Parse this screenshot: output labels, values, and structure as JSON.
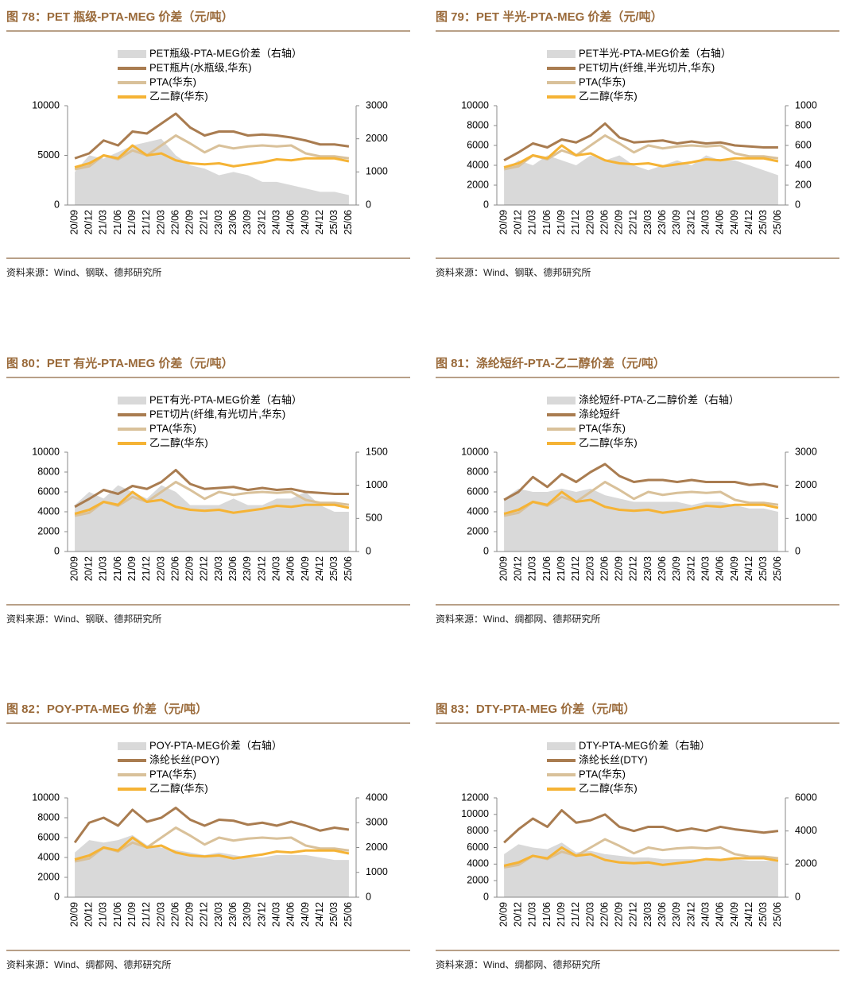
{
  "chart_data": [
    {
      "type": "line",
      "title": "图 78：PET 瓶级-PTA-MEG 价差（元/吨）",
      "note": "资料来源：Wind、钢联、德邦研究所",
      "categories": [
        "20/09",
        "20/12",
        "21/03",
        "21/06",
        "21/09",
        "21/12",
        "22/03",
        "22/06",
        "22/09",
        "22/12",
        "23/03",
        "23/06",
        "23/09",
        "23/12",
        "24/03",
        "24/06",
        "24/09",
        "24/12",
        "25/03",
        "25/06"
      ],
      "ylim": [
        0,
        10000
      ],
      "yticks": [
        0,
        5000,
        10000
      ],
      "y2lim": [
        0,
        3000
      ],
      "y2ticks": [
        0,
        1000,
        2000,
        3000
      ],
      "series": [
        {
          "name": "PET瓶级-PTA-MEG价差（右轴）",
          "type": "area",
          "axis": "y2",
          "color": "#d9d9d9",
          "values": [
            1000,
            1500,
            1400,
            1600,
            1800,
            1900,
            2000,
            1500,
            1200,
            1100,
            900,
            1000,
            900,
            700,
            700,
            600,
            500,
            400,
            400,
            300
          ]
        },
        {
          "name": "PET瓶片(水瓶级,华东)",
          "type": "line",
          "color": "#a97c50",
          "values": [
            4700,
            5200,
            6500,
            6000,
            7400,
            7200,
            8200,
            9200,
            7800,
            7000,
            7400,
            7400,
            7000,
            7100,
            7000,
            6800,
            6500,
            6100,
            6100,
            5900
          ]
        },
        {
          "name": "PTA(华东)",
          "type": "line",
          "color": "#d9c19a",
          "values": [
            3600,
            3900,
            5000,
            4600,
            5500,
            5000,
            6000,
            7000,
            6200,
            5300,
            6000,
            5700,
            5900,
            6000,
            5900,
            6000,
            5200,
            4900,
            4900,
            4700
          ]
        },
        {
          "name": "乙二醇(华东)",
          "type": "line",
          "color": "#f5b335",
          "values": [
            3800,
            4200,
            5000,
            4700,
            6000,
            5000,
            5200,
            4500,
            4200,
            4100,
            4200,
            3900,
            4100,
            4300,
            4600,
            4500,
            4700,
            4700,
            4700,
            4400
          ]
        }
      ]
    },
    {
      "type": "line",
      "title": "图 79：PET 半光-PTA-MEG 价差（元/吨）",
      "note": "资料来源：Wind、钢联、德邦研究所",
      "categories": [
        "20/09",
        "20/12",
        "21/03",
        "21/06",
        "21/09",
        "21/12",
        "22/03",
        "22/06",
        "22/09",
        "22/12",
        "23/03",
        "23/06",
        "23/09",
        "23/12",
        "24/03",
        "24/06",
        "24/09",
        "24/12",
        "25/03",
        "25/06"
      ],
      "ylim": [
        0,
        10000
      ],
      "yticks": [
        0,
        2000,
        4000,
        6000,
        8000,
        10000
      ],
      "y2lim": [
        0,
        1000
      ],
      "y2ticks": [
        0,
        200,
        400,
        600,
        800,
        1000
      ],
      "series": [
        {
          "name": "PET半光-PTA-MEG价差（右轴）",
          "type": "area",
          "axis": "y2",
          "color": "#d9d9d9",
          "values": [
            350,
            450,
            400,
            500,
            450,
            400,
            500,
            450,
            500,
            400,
            350,
            400,
            450,
            400,
            500,
            450,
            450,
            400,
            350,
            300
          ]
        },
        {
          "name": "PET切片(纤维,半光切片,华东)",
          "type": "line",
          "color": "#a97c50",
          "values": [
            4500,
            5300,
            6200,
            5800,
            6600,
            6300,
            7000,
            8200,
            6800,
            6300,
            6400,
            6500,
            6200,
            6400,
            6200,
            6300,
            6000,
            5900,
            5800,
            5800
          ]
        },
        {
          "name": "PTA(华东)",
          "type": "line",
          "color": "#d9c19a",
          "values": [
            3600,
            3900,
            5000,
            4600,
            5500,
            5000,
            6000,
            7000,
            6200,
            5300,
            6000,
            5700,
            5900,
            6000,
            5900,
            6000,
            5200,
            4900,
            4900,
            4700
          ]
        },
        {
          "name": "乙二醇(华东)",
          "type": "line",
          "color": "#f5b335",
          "values": [
            3800,
            4200,
            5000,
            4700,
            6000,
            5000,
            5200,
            4500,
            4200,
            4100,
            4200,
            3900,
            4100,
            4300,
            4600,
            4500,
            4700,
            4700,
            4700,
            4400
          ]
        }
      ]
    },
    {
      "type": "line",
      "title": "图 80：PET 有光-PTA-MEG 价差（元/吨）",
      "note": "资料来源：Wind、钢联、德邦研究所",
      "categories": [
        "20/09",
        "20/12",
        "21/03",
        "21/06",
        "21/09",
        "21/12",
        "22/03",
        "22/06",
        "22/09",
        "22/12",
        "23/03",
        "23/06",
        "23/09",
        "23/12",
        "24/03",
        "24/06",
        "24/09",
        "24/12",
        "25/03",
        "25/06"
      ],
      "ylim": [
        0,
        10000
      ],
      "yticks": [
        0,
        2000,
        4000,
        6000,
        8000,
        10000
      ],
      "y2lim": [
        0,
        1500
      ],
      "y2ticks": [
        0,
        500,
        1000,
        1500
      ],
      "series": [
        {
          "name": "PET有光-PTA-MEG价差（右轴）",
          "type": "area",
          "axis": "y2",
          "color": "#d9d9d9",
          "values": [
            700,
            900,
            800,
            1000,
            900,
            800,
            1000,
            900,
            700,
            700,
            700,
            800,
            700,
            700,
            800,
            800,
            900,
            700,
            600,
            600
          ]
        },
        {
          "name": "PET切片(纤维,有光切片,华东)",
          "type": "line",
          "color": "#a97c50",
          "values": [
            4500,
            5300,
            6200,
            5800,
            6600,
            6300,
            7000,
            8200,
            6800,
            6300,
            6400,
            6500,
            6200,
            6400,
            6200,
            6300,
            6000,
            5900,
            5800,
            5800
          ]
        },
        {
          "name": "PTA(华东)",
          "type": "line",
          "color": "#d9c19a",
          "values": [
            3600,
            3900,
            5000,
            4600,
            5500,
            5000,
            6000,
            7000,
            6200,
            5300,
            6000,
            5700,
            5900,
            6000,
            5900,
            6000,
            5200,
            4900,
            4900,
            4700
          ]
        },
        {
          "name": "乙二醇(华东)",
          "type": "line",
          "color": "#f5b335",
          "values": [
            3800,
            4200,
            5000,
            4700,
            6000,
            5000,
            5200,
            4500,
            4200,
            4100,
            4200,
            3900,
            4100,
            4300,
            4600,
            4500,
            4700,
            4700,
            4700,
            4400
          ]
        }
      ]
    },
    {
      "type": "line",
      "title": "图 81：涤纶短纤-PTA-乙二醇价差（元/吨）",
      "note": "资料来源：Wind、绸都网、德邦研究所",
      "categories": [
        "20/09",
        "20/12",
        "21/03",
        "21/06",
        "21/09",
        "21/12",
        "22/03",
        "22/06",
        "22/09",
        "22/12",
        "23/03",
        "23/06",
        "23/09",
        "23/12",
        "24/03",
        "24/06",
        "24/09",
        "24/12",
        "25/03",
        "25/06"
      ],
      "ylim": [
        0,
        10000
      ],
      "yticks": [
        0,
        2000,
        4000,
        6000,
        8000,
        10000
      ],
      "y2lim": [
        0,
        3000
      ],
      "y2ticks": [
        0,
        1000,
        2000,
        3000
      ],
      "series": [
        {
          "name": "涤纶短纤-PTA-乙二醇价差（右轴）",
          "type": "area",
          "axis": "y2",
          "color": "#d9d9d9",
          "values": [
            1600,
            1900,
            1800,
            1800,
            1900,
            1800,
            1900,
            1700,
            1600,
            1500,
            1500,
            1500,
            1500,
            1400,
            1500,
            1500,
            1400,
            1300,
            1300,
            1200
          ]
        },
        {
          "name": "涤纶短纤",
          "type": "line",
          "color": "#a97c50",
          "values": [
            5200,
            6000,
            7500,
            6500,
            7800,
            7000,
            8000,
            8800,
            7600,
            7000,
            7200,
            7200,
            7000,
            7200,
            7000,
            7000,
            7000,
            6700,
            6800,
            6500
          ]
        },
        {
          "name": "PTA(华东)",
          "type": "line",
          "color": "#d9c19a",
          "values": [
            3600,
            3900,
            5000,
            4600,
            5500,
            5000,
            6000,
            7000,
            6200,
            5300,
            6000,
            5700,
            5900,
            6000,
            5900,
            6000,
            5200,
            4900,
            4900,
            4700
          ]
        },
        {
          "name": "乙二醇(华东)",
          "type": "line",
          "color": "#f5b335",
          "values": [
            3800,
            4200,
            5000,
            4700,
            6000,
            5000,
            5200,
            4500,
            4200,
            4100,
            4200,
            3900,
            4100,
            4300,
            4600,
            4500,
            4700,
            4700,
            4700,
            4400
          ]
        }
      ]
    },
    {
      "type": "line",
      "title": "图 82：POY-PTA-MEG 价差（元/吨）",
      "note": "资料来源：Wind、绸都网、德邦研究所",
      "categories": [
        "20/09",
        "20/12",
        "21/03",
        "21/06",
        "21/09",
        "21/12",
        "22/03",
        "22/06",
        "22/09",
        "22/12",
        "23/03",
        "23/06",
        "23/09",
        "23/12",
        "24/03",
        "24/06",
        "24/09",
        "24/12",
        "25/03",
        "25/06"
      ],
      "ylim": [
        0,
        10000
      ],
      "yticks": [
        0,
        2000,
        4000,
        6000,
        8000,
        10000
      ],
      "y2lim": [
        0,
        4000
      ],
      "y2ticks": [
        0,
        1000,
        2000,
        3000,
        4000
      ],
      "series": [
        {
          "name": "POY-PTA-MEG价差（右轴）",
          "type": "area",
          "axis": "y2",
          "color": "#d9d9d9",
          "values": [
            1800,
            2300,
            2200,
            2300,
            2500,
            2100,
            2000,
            1900,
            1800,
            1700,
            1800,
            1700,
            1600,
            1600,
            1700,
            1700,
            1700,
            1600,
            1500,
            1500
          ]
        },
        {
          "name": "涤纶长丝(POY)",
          "type": "line",
          "color": "#a97c50",
          "values": [
            5500,
            7500,
            8000,
            7200,
            8800,
            7600,
            8000,
            9000,
            7800,
            7200,
            7800,
            7700,
            7300,
            7500,
            7200,
            7600,
            7200,
            6700,
            7000,
            6800
          ]
        },
        {
          "name": "PTA(华东)",
          "type": "line",
          "color": "#d9c19a",
          "values": [
            3600,
            3900,
            5000,
            4600,
            5500,
            5000,
            6000,
            7000,
            6200,
            5300,
            6000,
            5700,
            5900,
            6000,
            5900,
            6000,
            5200,
            4900,
            4900,
            4700
          ]
        },
        {
          "name": "乙二醇(华东)",
          "type": "line",
          "color": "#f5b335",
          "values": [
            3800,
            4200,
            5000,
            4700,
            6000,
            5000,
            5200,
            4500,
            4200,
            4100,
            4200,
            3900,
            4100,
            4300,
            4600,
            4500,
            4700,
            4700,
            4700,
            4400
          ]
        }
      ]
    },
    {
      "type": "line",
      "title": "图 83：DTY-PTA-MEG 价差（元/吨）",
      "note": "资料来源：Wind、绸都网、德邦研究所",
      "categories": [
        "20/09",
        "20/12",
        "21/03",
        "21/06",
        "21/09",
        "21/12",
        "22/03",
        "22/06",
        "22/09",
        "22/12",
        "23/03",
        "23/06",
        "23/09",
        "23/12",
        "24/03",
        "24/06",
        "24/09",
        "24/12",
        "25/03",
        "25/06"
      ],
      "ylim": [
        0,
        12000
      ],
      "yticks": [
        0,
        2000,
        4000,
        6000,
        8000,
        10000,
        12000
      ],
      "y2lim": [
        0,
        6000
      ],
      "y2ticks": [
        0,
        2000,
        4000,
        6000
      ],
      "series": [
        {
          "name": "DTY-PTA-MEG价差（右轴）",
          "type": "area",
          "axis": "y2",
          "color": "#d9d9d9",
          "values": [
            2600,
            3200,
            3000,
            2900,
            3300,
            2700,
            2800,
            2600,
            2500,
            2400,
            2400,
            2300,
            2300,
            2300,
            2300,
            2300,
            2300,
            2200,
            2200,
            2200
          ]
        },
        {
          "name": "涤纶长丝(DTY)",
          "type": "line",
          "color": "#a97c50",
          "values": [
            6600,
            8200,
            9500,
            8500,
            10500,
            9000,
            9300,
            10000,
            8500,
            8000,
            8500,
            8500,
            8000,
            8300,
            8000,
            8500,
            8200,
            8000,
            7800,
            8000
          ]
        },
        {
          "name": "PTA(华东)",
          "type": "line",
          "color": "#d9c19a",
          "values": [
            3600,
            3900,
            5000,
            4600,
            5500,
            5000,
            6000,
            7000,
            6200,
            5300,
            6000,
            5700,
            5900,
            6000,
            5900,
            6000,
            5200,
            4900,
            4900,
            4700
          ]
        },
        {
          "name": "乙二醇(华东)",
          "type": "line",
          "color": "#f5b335",
          "values": [
            3800,
            4200,
            5000,
            4700,
            6000,
            5000,
            5200,
            4500,
            4200,
            4100,
            4200,
            3900,
            4100,
            4300,
            4600,
            4500,
            4700,
            4700,
            4700,
            4400
          ]
        }
      ]
    }
  ]
}
